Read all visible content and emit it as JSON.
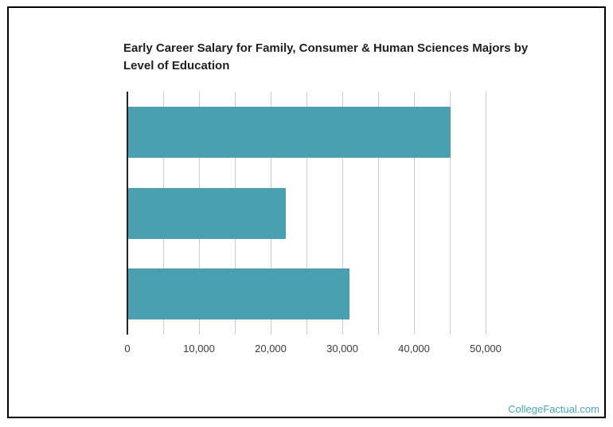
{
  "chart_data": {
    "type": "bar",
    "orientation": "horizontal",
    "title": "Early Career Salary for Family, Consumer & Human Sciences Majors by Level of Education",
    "title_lines": [
      "Early Career Salary for Family, Consumer & Human Sciences Majors by",
      "Level of Education"
    ],
    "categories": [
      "",
      "",
      ""
    ],
    "category_labels_visible": false,
    "values": [
      45100,
      22100,
      31000
    ],
    "xlabel": "",
    "ylabel": "",
    "xlim": [
      0,
      50000
    ],
    "x_major_ticks": [
      0,
      10000,
      20000,
      30000,
      40000,
      50000
    ],
    "x_tick_labels": [
      "0",
      "10,000",
      "20,000",
      "30,000",
      "40,000",
      "50,000"
    ],
    "x_minor_gridline_step": 5000,
    "grid": true,
    "legend": "none",
    "bar_color": "#4a9fb1"
  },
  "watermark": {
    "text": "CollegeFactual.com",
    "color": "#4aa4b5"
  },
  "colors": {
    "background": "#ffffff",
    "frame_border": "#000000",
    "title_text": "#212121",
    "axis_line": "#222222",
    "gridline": "#cccccc",
    "tick_label": "#3c3c3c"
  }
}
